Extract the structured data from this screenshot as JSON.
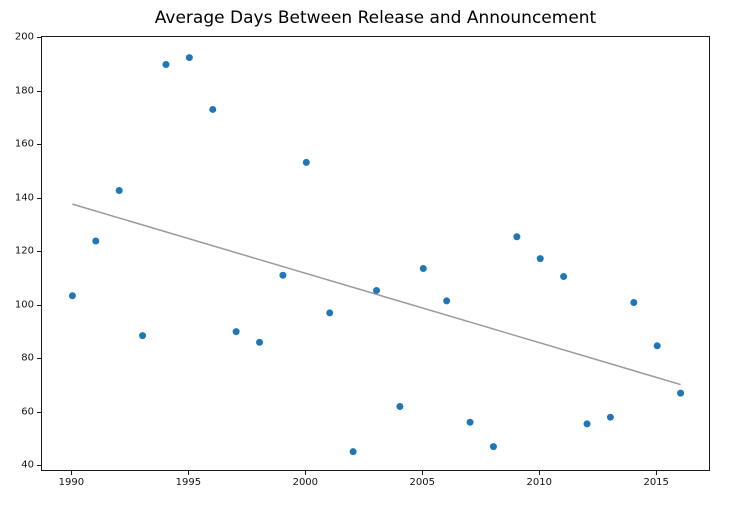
{
  "chart_data": {
    "type": "scatter",
    "title": "Average Days Between Release and Announcement",
    "xlabel": "",
    "ylabel": "",
    "x": [
      1990,
      1991,
      1992,
      1993,
      1994,
      1995,
      1996,
      1997,
      1998,
      1999,
      2000,
      2001,
      2002,
      2003,
      2004,
      2005,
      2006,
      2007,
      2008,
      2009,
      2010,
      2011,
      2012,
      2013,
      2014,
      2015,
      2016
    ],
    "y": [
      103.7,
      124.2,
      143.1,
      88.8,
      190.2,
      192.8,
      173.4,
      90.3,
      86.3,
      111.4,
      153.6,
      97.3,
      45.4,
      105.7,
      62.3,
      113.9,
      101.8,
      56.4,
      47.3,
      125.8,
      117.6,
      110.9,
      55.8,
      58.3,
      101.2,
      85.0,
      67.3
    ],
    "series": [
      {
        "name": "avg-days-points",
        "type": "scatter",
        "color": "#1f77b4",
        "marker_radius": 3.5
      },
      {
        "name": "trend-line",
        "type": "line",
        "color": "#9a9a9a",
        "line_width": 1.5,
        "x": [
          1990,
          2016
        ],
        "y": [
          138.0,
          70.5
        ]
      }
    ],
    "x_ticks": [
      1990,
      1995,
      2000,
      2005,
      2010,
      2015
    ],
    "y_ticks": [
      40,
      60,
      80,
      100,
      120,
      140,
      160,
      180,
      200
    ],
    "xlim": [
      1988.7,
      2017.3
    ],
    "ylim": [
      37.8,
      200.5
    ],
    "grid": false,
    "legend": "none",
    "background_color": "#ffffff",
    "point_color": "#1f77b4",
    "trend_color": "#9a9a9a"
  }
}
